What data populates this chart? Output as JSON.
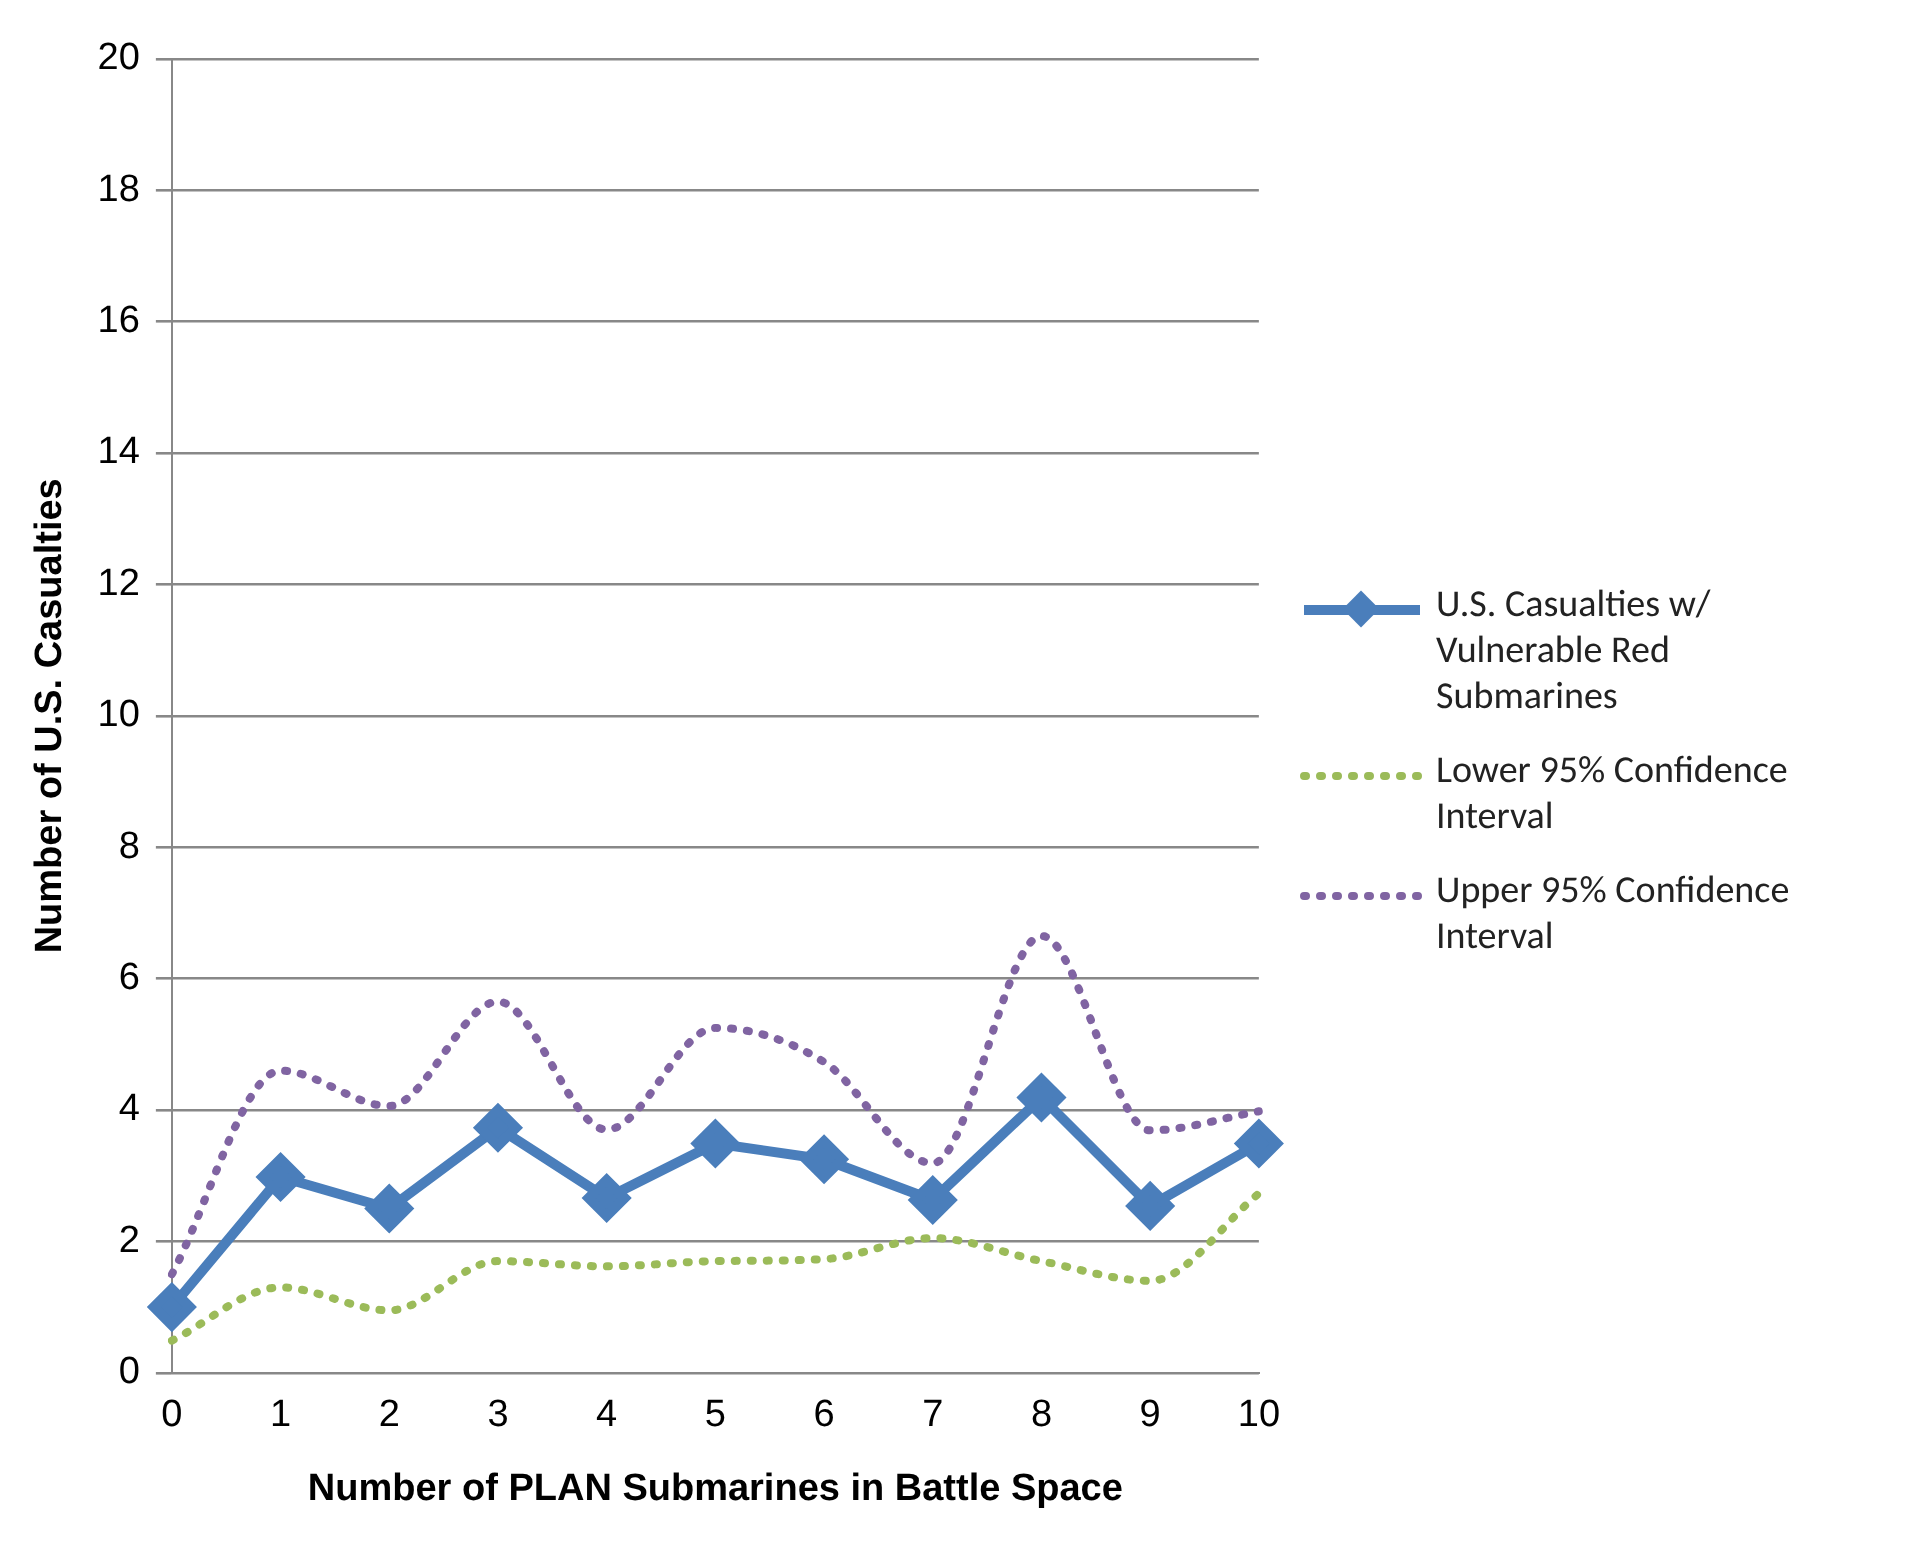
{
  "chart_data": {
    "type": "line",
    "xlabel": "Number of PLAN Submarines in Battle Space",
    "ylabel": "Number of U.S. Casualties",
    "categories": [
      "0",
      "1",
      "2",
      "3",
      "4",
      "5",
      "6",
      "7",
      "8",
      "9",
      "10"
    ],
    "ylim": [
      0,
      20
    ],
    "yticks": [
      0,
      2,
      4,
      6,
      8,
      10,
      12,
      14,
      16,
      18,
      20
    ],
    "grid": "y",
    "legend": "right",
    "series": [
      {
        "name": "U.S. Casualties w/ Vulnerable Red Submarines",
        "color": "#4a7ebb",
        "marker": "diamond",
        "line_style": "solid",
        "values": [
          1.0,
          2.98,
          2.5,
          3.73,
          2.66,
          3.49,
          3.25,
          2.63,
          4.19,
          2.54,
          3.49
        ]
      },
      {
        "name": "Lower 95% Confidence Interval",
        "color": "#9bbb59",
        "marker": "none",
        "line_style": "dotted",
        "values": [
          0.49,
          1.3,
          0.95,
          1.7,
          1.62,
          1.7,
          1.73,
          2.05,
          1.7,
          1.4,
          2.73
        ]
      },
      {
        "name": "Upper 95% Confidence Interval",
        "color": "#8064a2",
        "marker": "none",
        "line_style": "dotted",
        "values": [
          1.5,
          4.6,
          4.06,
          5.65,
          3.7,
          5.25,
          4.73,
          3.19,
          6.65,
          3.69,
          3.98
        ]
      }
    ]
  }
}
